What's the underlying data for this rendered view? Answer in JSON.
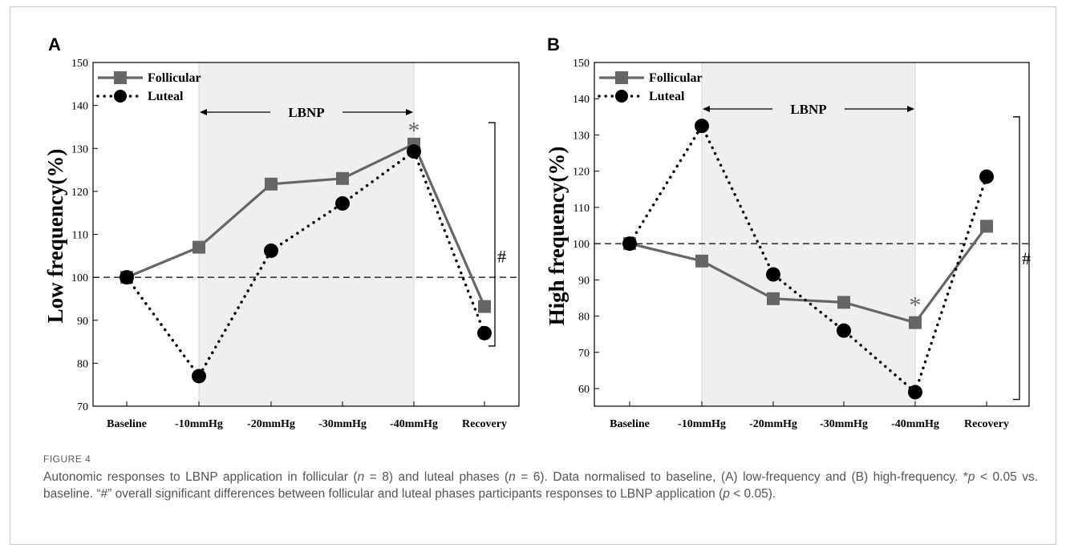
{
  "figure": {
    "label": "FIGURE 4",
    "caption": {
      "p1": "Autonomic responses to LBNP application in follicular (",
      "n": "n",
      "p2": " = 8) and luteal phases (",
      "p3": " = 6). Data normalised to baseline, (A) low-frequency and (B) high-frequency. *",
      "p": "p",
      "p4": " < 0.05 vs. baseline. “#” overall significant differences between follicular and luteal phases participants responses to LBNP application (",
      "p5": " < 0.05)."
    }
  },
  "colors": {
    "follicular": "#666666",
    "luteal": "#000000",
    "shade": "#efefef"
  },
  "chart_data": [
    {
      "panel": "A",
      "type": "line",
      "ylabel": "Low frequency(%)",
      "xlabel": "",
      "categories": [
        "Baseline",
        "-10mmHg",
        "-20mmHg",
        "-30mmHg",
        "-40mmHg",
        "Recovery"
      ],
      "ylim": [
        70,
        150
      ],
      "yticks": [
        70,
        80,
        90,
        100,
        110,
        120,
        130,
        140,
        150
      ],
      "reference_line": 100,
      "shaded_span": {
        "from": "-10mmHg",
        "to": "-40mmHg",
        "label": "LBNP"
      },
      "series": [
        {
          "name": "Follicular",
          "marker": "square",
          "style": "solid",
          "values": [
            100,
            107,
            121.7,
            123,
            131,
            93.2
          ]
        },
        {
          "name": "Luteal",
          "marker": "circle",
          "style": "dotted",
          "values": [
            100,
            77,
            106.2,
            117.2,
            129.3,
            87
          ]
        }
      ],
      "annotations": [
        {
          "text": "*",
          "at": "-40mmHg",
          "value": 135
        },
        {
          "text": "#",
          "at": "bracket",
          "value": 105
        }
      ],
      "bracket": [
        84,
        136
      ],
      "legend": "top-left"
    },
    {
      "panel": "B",
      "type": "line",
      "ylabel": "High frequency(%)",
      "xlabel": "",
      "categories": [
        "Baseline",
        "-10mmHg",
        "-20mmHg",
        "-30mmHg",
        "-40mmHg",
        "Recovery"
      ],
      "ylim": [
        50,
        150
      ],
      "yticks": [
        60,
        70,
        80,
        90,
        100,
        110,
        120,
        130,
        140,
        150
      ],
      "reference_line": 100,
      "shaded_span": {
        "from": "-10mmHg",
        "to": "-40mmHg",
        "label": "LBNP"
      },
      "series": [
        {
          "name": "Follicular",
          "marker": "square",
          "style": "solid",
          "values": [
            100,
            95.2,
            84.8,
            83.8,
            78.2,
            104.8
          ]
        },
        {
          "name": "Luteal",
          "marker": "circle",
          "style": "dotted",
          "values": [
            100,
            132.5,
            91.5,
            76,
            59,
            118.5
          ]
        }
      ],
      "annotations": [
        {
          "text": "*",
          "at": "-40mmHg",
          "value": 84
        },
        {
          "text": "#",
          "at": "bracket",
          "value": 96
        }
      ],
      "bracket": [
        57,
        135
      ],
      "legend": "top-left"
    }
  ]
}
